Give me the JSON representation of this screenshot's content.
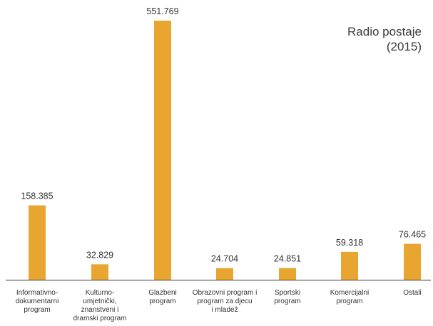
{
  "chart_data": {
    "type": "bar",
    "title_lines": [
      "Radio postaje",
      "(2015)"
    ],
    "categories": [
      [
        "Informativno-",
        "dokumentarni",
        "program"
      ],
      [
        "Kulturno-",
        "umjetnički,",
        "znanstveni i",
        "dramski program"
      ],
      [
        "Glazbeni",
        "program"
      ],
      [
        "Obrazovni program i",
        "program za djecu",
        "i mladež"
      ],
      [
        "Sportski",
        "program"
      ],
      [
        "Komercijalni",
        "program"
      ],
      [
        "Ostali"
      ]
    ],
    "values": [
      158385,
      32829,
      551769,
      24704,
      24851,
      59318,
      76465
    ],
    "value_labels": [
      "158.385",
      "32.829",
      "551.769",
      "24.704",
      "24.851",
      "59.318",
      "76.465"
    ],
    "ylim": [
      0,
      551769
    ],
    "grid": false,
    "bar_color": "#E8A630",
    "axis_color": "#333333"
  }
}
